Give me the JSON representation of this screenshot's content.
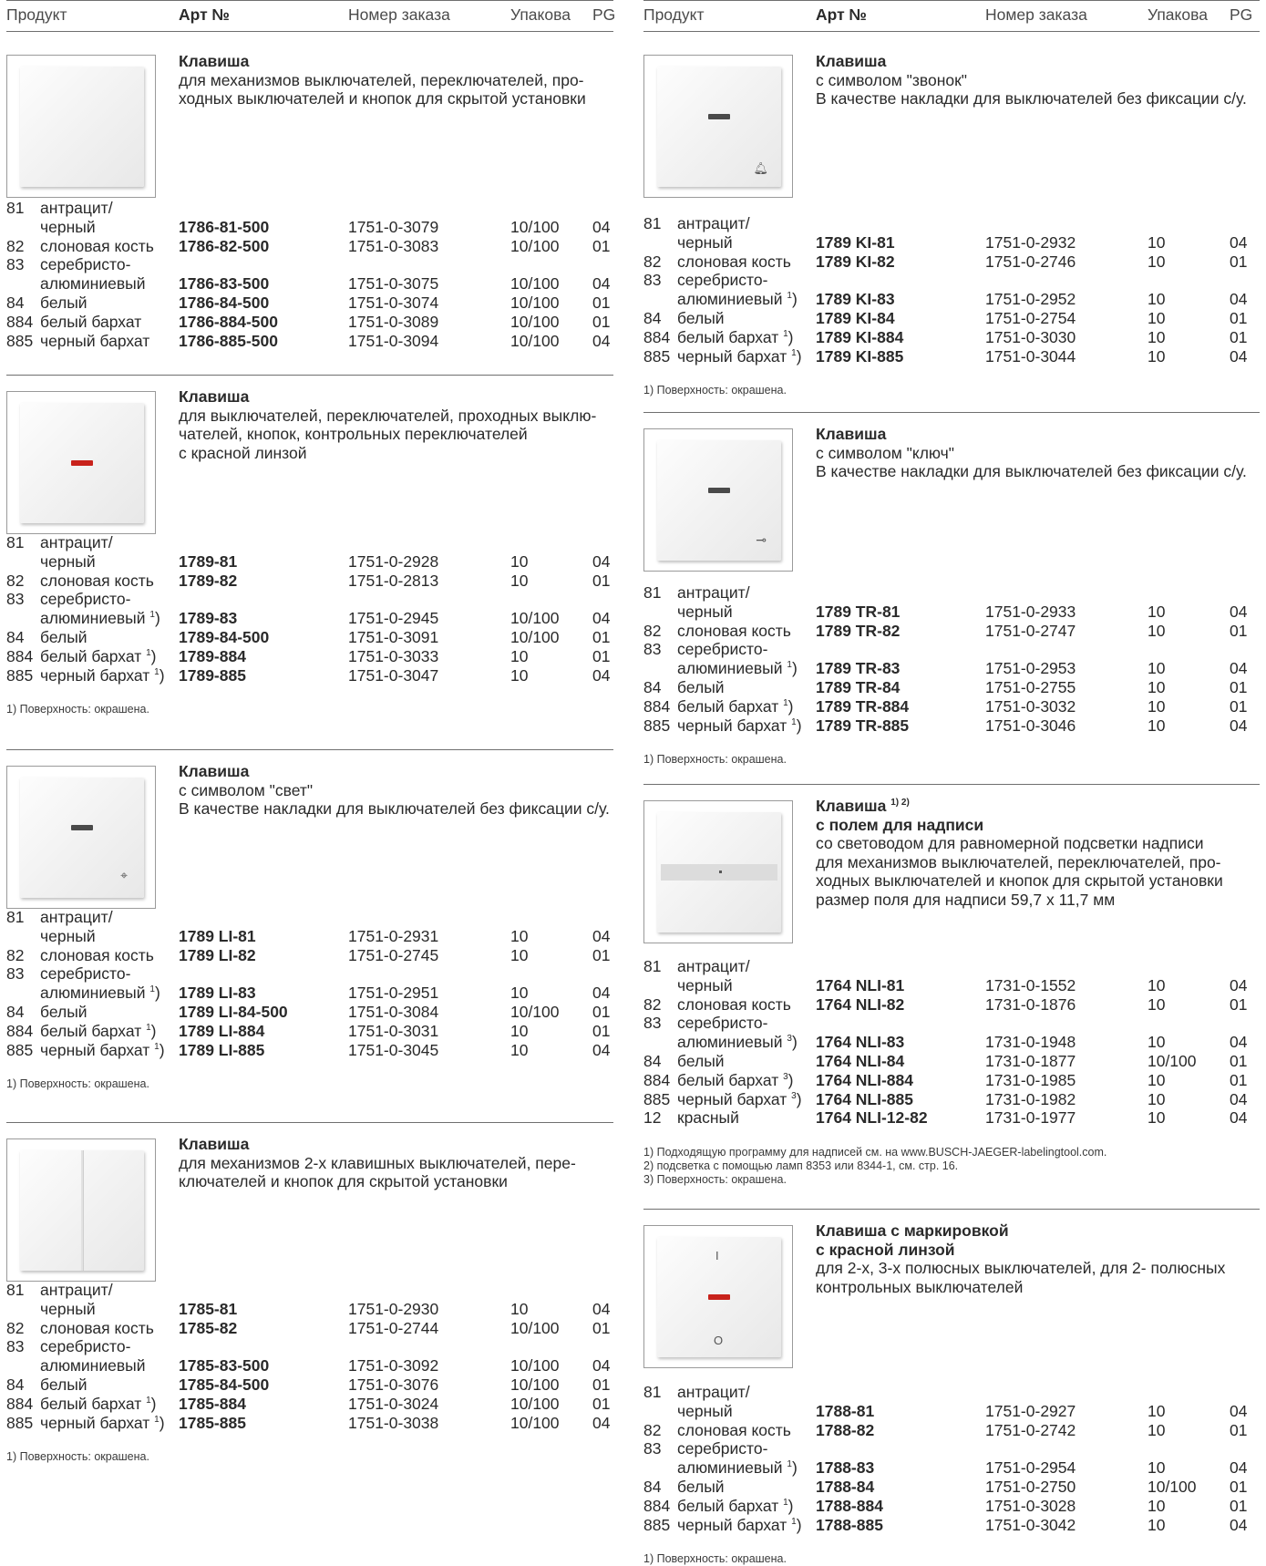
{
  "header": {
    "product": "Продукт",
    "art": "Арт №",
    "order": "Номер заказа",
    "pack": "Упакова",
    "pg": "PG"
  },
  "sections": [
    {
      "title": "Клавиша",
      "description": "для механизмов выключателей, переключателей, про-\nходных выключателей и кнопок для скрытой установки",
      "thumb_icon": "plain-rocker-icon",
      "rows": [
        {
          "code": "81",
          "name": "антрацит/",
          "art": "",
          "order": "",
          "pack": "",
          "pg": ""
        },
        {
          "code": "",
          "name": "черный",
          "art": "1786-81-500",
          "order": "1751-0-3079",
          "pack": "10/100",
          "pg": "04"
        },
        {
          "code": "82",
          "name": "слоновая кость",
          "art": "1786-82-500",
          "order": "1751-0-3083",
          "pack": "10/100",
          "pg": "01"
        },
        {
          "code": "83",
          "name": "серебристо-",
          "art": "",
          "order": "",
          "pack": "",
          "pg": ""
        },
        {
          "code": "",
          "name": "алюминиевый",
          "art": "1786-83-500",
          "order": "1751-0-3075",
          "pack": "10/100",
          "pg": "04"
        },
        {
          "code": "84",
          "name": "белый",
          "art": "1786-84-500",
          "order": "1751-0-3074",
          "pack": "10/100",
          "pg": "01"
        },
        {
          "code": "884",
          "name": "белый бархат",
          "art": "1786-884-500",
          "order": "1751-0-3089",
          "pack": "10/100",
          "pg": "01"
        },
        {
          "code": "885",
          "name": "черный бархат",
          "art": "1786-885-500",
          "order": "1751-0-3094",
          "pack": "10/100",
          "pg": "04"
        }
      ],
      "footnotes": []
    },
    {
      "title": "Клавиша",
      "description": "для выключателей, переключателей, проходных выклю-\nчателей, кнопок, контрольных переключателей\nс красной линзой",
      "thumb_icon": "red-lens-rocker-icon",
      "rows": [
        {
          "code": "81",
          "name": "антрацит/",
          "art": "",
          "order": "",
          "pack": "",
          "pg": ""
        },
        {
          "code": "",
          "name": "черный",
          "art": "1789-81",
          "order": "1751-0-2928",
          "pack": "10",
          "pg": "04"
        },
        {
          "code": "82",
          "name": "слоновая кость",
          "art": "1789-82",
          "order": "1751-0-2813",
          "pack": "10",
          "pg": "01"
        },
        {
          "code": "83",
          "name": "серебристо-",
          "art": "",
          "order": "",
          "pack": "",
          "pg": ""
        },
        {
          "code": "",
          "name": "алюминиевый",
          "sup": "1",
          "art": "1789-83",
          "order": "1751-0-2945",
          "pack": "10/100",
          "pg": "04"
        },
        {
          "code": "84",
          "name": "белый",
          "art": "1789-84-500",
          "order": "1751-0-3091",
          "pack": "10/100",
          "pg": "01"
        },
        {
          "code": "884",
          "name": "белый бархат",
          "sup": "1",
          "art": "1789-884",
          "order": "1751-0-3033",
          "pack": "10",
          "pg": "01"
        },
        {
          "code": "885",
          "name": "черный бархат",
          "sup": "1",
          "art": "1789-885",
          "order": "1751-0-3047",
          "pack": "10",
          "pg": "04"
        }
      ],
      "footnotes": [
        "1)  Поверхность: окрашена."
      ]
    },
    {
      "title": "Клавиша",
      "description": "с символом \"свет\"\nВ качестве накладки для выключателей без фиксации с/у.",
      "thumb_icon": "light-symbol-rocker-icon",
      "rows": [
        {
          "code": "81",
          "name": "антрацит/",
          "art": "",
          "order": "",
          "pack": "",
          "pg": ""
        },
        {
          "code": "",
          "name": "черный",
          "art": "1789 LI-81",
          "order": "1751-0-2931",
          "pack": "10",
          "pg": "04"
        },
        {
          "code": "82",
          "name": "слоновая кость",
          "art": "1789 LI-82",
          "order": "1751-0-2745",
          "pack": "10",
          "pg": "01"
        },
        {
          "code": "83",
          "name": "серебристо-",
          "art": "",
          "order": "",
          "pack": "",
          "pg": ""
        },
        {
          "code": "",
          "name": "алюминиевый",
          "sup": "1",
          "art": "1789 LI-83",
          "order": "1751-0-2951",
          "pack": "10",
          "pg": "04"
        },
        {
          "code": "84",
          "name": "белый",
          "art": "1789 LI-84-500",
          "order": "1751-0-3084",
          "pack": "10/100",
          "pg": "01"
        },
        {
          "code": "884",
          "name": "белый бархат",
          "sup": "1",
          "art": "1789 LI-884",
          "order": "1751-0-3031",
          "pack": "10",
          "pg": "01"
        },
        {
          "code": "885",
          "name": "черный бархат",
          "sup": "1",
          "art": "1789 LI-885",
          "order": "1751-0-3045",
          "pack": "10",
          "pg": "04"
        }
      ],
      "footnotes": [
        "1)  Поверхность: окрашена."
      ]
    },
    {
      "title": "Клавиша",
      "description": "для механизмов 2-х клавишных выключателей, пере-\nключателей и кнопок для скрытой установки",
      "thumb_icon": "double-rocker-icon",
      "rows": [
        {
          "code": "81",
          "name": "антрацит/",
          "art": "",
          "order": "",
          "pack": "",
          "pg": ""
        },
        {
          "code": "",
          "name": "черный",
          "art": "1785-81",
          "order": "1751-0-2930",
          "pack": "10",
          "pg": "04"
        },
        {
          "code": "82",
          "name": "слоновая кость",
          "art": "1785-82",
          "order": "1751-0-2744",
          "pack": "10/100",
          "pg": "01"
        },
        {
          "code": "83",
          "name": "серебристо-",
          "art": "",
          "order": "",
          "pack": "",
          "pg": ""
        },
        {
          "code": "",
          "name": "алюминиевый",
          "art": "1785-83-500",
          "order": "1751-0-3092",
          "pack": "10/100",
          "pg": "04"
        },
        {
          "code": "84",
          "name": "белый",
          "art": "1785-84-500",
          "order": "1751-0-3076",
          "pack": "10/100",
          "pg": "01"
        },
        {
          "code": "884",
          "name": "белый бархат",
          "sup": "1",
          "art": "1785-884",
          "order": "1751-0-3024",
          "pack": "10/100",
          "pg": "01"
        },
        {
          "code": "885",
          "name": "черный бархат",
          "sup": "1",
          "art": "1785-885",
          "order": "1751-0-3038",
          "pack": "10/100",
          "pg": "04"
        }
      ],
      "footnotes": [
        "1)  Поверхность: окрашена."
      ]
    },
    {
      "title": "Клавиша",
      "description": "с символом \"звонок\"\nВ качестве накладки для выключателей без фиксации с/у.",
      "thumb_icon": "bell-symbol-rocker-icon",
      "rows": [
        {
          "code": "81",
          "name": "антрацит/",
          "art": "",
          "order": "",
          "pack": "",
          "pg": ""
        },
        {
          "code": "",
          "name": "черный",
          "art": "1789 KI-81",
          "order": "1751-0-2932",
          "pack": "10",
          "pg": "04"
        },
        {
          "code": "82",
          "name": "слоновая кость",
          "art": "1789 KI-82",
          "order": "1751-0-2746",
          "pack": "10",
          "pg": "01"
        },
        {
          "code": "83",
          "name": "серебристо-",
          "art": "",
          "order": "",
          "pack": "",
          "pg": ""
        },
        {
          "code": "",
          "name": "алюминиевый",
          "sup": "1",
          "art": "1789 KI-83",
          "order": "1751-0-2952",
          "pack": "10",
          "pg": "04"
        },
        {
          "code": "84",
          "name": "белый",
          "art": "1789 KI-84",
          "order": "1751-0-2754",
          "pack": "10",
          "pg": "01"
        },
        {
          "code": "884",
          "name": "белый бархат",
          "sup": "1",
          "art": "1789 KI-884",
          "order": "1751-0-3030",
          "pack": "10",
          "pg": "01"
        },
        {
          "code": "885",
          "name": "черный бархат",
          "sup": "1",
          "art": "1789 KI-885",
          "order": "1751-0-3044",
          "pack": "10",
          "pg": "04"
        }
      ],
      "footnotes": [
        "1)  Поверхность: окрашена."
      ]
    },
    {
      "title": "Клавиша",
      "description": "с символом \"ключ\"\nВ качестве накладки для выключателей без фиксации с/у.",
      "thumb_icon": "key-symbol-rocker-icon",
      "rows": [
        {
          "code": "81",
          "name": "антрацит/",
          "art": "",
          "order": "",
          "pack": "",
          "pg": ""
        },
        {
          "code": "",
          "name": "черный",
          "art": "1789 TR-81",
          "order": "1751-0-2933",
          "pack": "10",
          "pg": "04"
        },
        {
          "code": "82",
          "name": "слоновая кость",
          "art": "1789 TR-82",
          "order": "1751-0-2747",
          "pack": "10",
          "pg": "01"
        },
        {
          "code": "83",
          "name": "серебристо-",
          "art": "",
          "order": "",
          "pack": "",
          "pg": ""
        },
        {
          "code": "",
          "name": "алюминиевый",
          "sup": "1",
          "art": "1789 TR-83",
          "order": "1751-0-2953",
          "pack": "10",
          "pg": "04"
        },
        {
          "code": "84",
          "name": "белый",
          "art": "1789 TR-84",
          "order": "1751-0-2755",
          "pack": "10",
          "pg": "01"
        },
        {
          "code": "884",
          "name": "белый бархат",
          "sup": "1",
          "art": "1789 TR-884",
          "order": "1751-0-3032",
          "pack": "10",
          "pg": "01"
        },
        {
          "code": "885",
          "name": "черный бархат",
          "sup": "1",
          "art": "1789 TR-885",
          "order": "1751-0-3046",
          "pack": "10",
          "pg": "04"
        }
      ],
      "footnotes": [
        "1)  Поверхность: окрашена."
      ]
    },
    {
      "title": "Клавиша",
      "title_sup": "1) 2)",
      "subtitle": "с полем для надписи",
      "description": "со световодом для равномерной подсветки надписи\nдля механизмов выключателей, переключателей, про-\nходных выключателей и кнопок для скрытой установки\nразмер поля для надписи 59,7 x 11,7 мм",
      "thumb_icon": "label-field-rocker-icon",
      "rows": [
        {
          "code": "81",
          "name": "антрацит/",
          "art": "",
          "order": "",
          "pack": "",
          "pg": ""
        },
        {
          "code": "",
          "name": "черный",
          "art": "1764 NLI-81",
          "order": "1731-0-1552",
          "pack": "10",
          "pg": "04"
        },
        {
          "code": "82",
          "name": "слоновая кость",
          "art": "1764 NLI-82",
          "order": "1731-0-1876",
          "pack": "10",
          "pg": "01"
        },
        {
          "code": "83",
          "name": "серебристо-",
          "art": "",
          "order": "",
          "pack": "",
          "pg": ""
        },
        {
          "code": "",
          "name": "алюминиевый",
          "sup": "3",
          "art": "1764 NLI-83",
          "order": "1731-0-1948",
          "pack": "10",
          "pg": "04"
        },
        {
          "code": "84",
          "name": "белый",
          "art": "1764 NLI-84",
          "order": "1731-0-1877",
          "pack": "10/100",
          "pg": "01"
        },
        {
          "code": "884",
          "name": "белый бархат",
          "sup": "3",
          "art": "1764 NLI-884",
          "order": "1731-0-1985",
          "pack": "10",
          "pg": "01"
        },
        {
          "code": "885",
          "name": "черный бархат",
          "sup": "3",
          "art": "1764 NLI-885",
          "order": "1731-0-1982",
          "pack": "10",
          "pg": "04"
        },
        {
          "code": "12",
          "name": "красный",
          "art": "1764 NLI-12-82",
          "order": "1731-0-1977",
          "pack": "10",
          "pg": "04"
        }
      ],
      "footnotes": [
        "1)  Подходящую программу для надписей см. на www.BUSCH-JAEGER-labelingtool.com.",
        "2)  подсветка с помощью ламп 8353 или 8344-1, см. стр. 16.",
        "3)  Поверхность: окрашена."
      ]
    },
    {
      "title": "Клавиша с маркировкой",
      "subtitle": "с красной линзой",
      "description": "для 2-х, 3-х полюсных выключателей, для 2- полюсных\nконтрольных выключателей",
      "thumb_icon": "marked-red-lens-rocker-icon",
      "rows": [
        {
          "code": "81",
          "name": "антрацит/",
          "art": "",
          "order": "",
          "pack": "",
          "pg": ""
        },
        {
          "code": "",
          "name": "черный",
          "art": "1788-81",
          "order": "1751-0-2927",
          "pack": "10",
          "pg": "04"
        },
        {
          "code": "82",
          "name": "слоновая кость",
          "art": "1788-82",
          "order": "1751-0-2742",
          "pack": "10",
          "pg": "01"
        },
        {
          "code": "83",
          "name": "серебристо-",
          "art": "",
          "order": "",
          "pack": "",
          "pg": ""
        },
        {
          "code": "",
          "name": "алюминиевый",
          "sup": "1",
          "art": "1788-83",
          "order": "1751-0-2954",
          "pack": "10",
          "pg": "04"
        },
        {
          "code": "84",
          "name": "белый",
          "art": "1788-84",
          "order": "1751-0-2750",
          "pack": "10/100",
          "pg": "01"
        },
        {
          "code": "884",
          "name": "белый бархат",
          "sup": "1",
          "art": "1788-884",
          "order": "1751-0-3028",
          "pack": "10",
          "pg": "01"
        },
        {
          "code": "885",
          "name": "черный бархат",
          "sup": "1",
          "art": "1788-885",
          "order": "1751-0-3042",
          "pack": "10",
          "pg": "04"
        }
      ],
      "footnotes": [
        "1)  Поверхность: окрашена."
      ]
    }
  ],
  "colors": {
    "lens_red": "#c8221b",
    "lens_dark": "#4a4a4a",
    "rule": "#6f6f6f"
  }
}
